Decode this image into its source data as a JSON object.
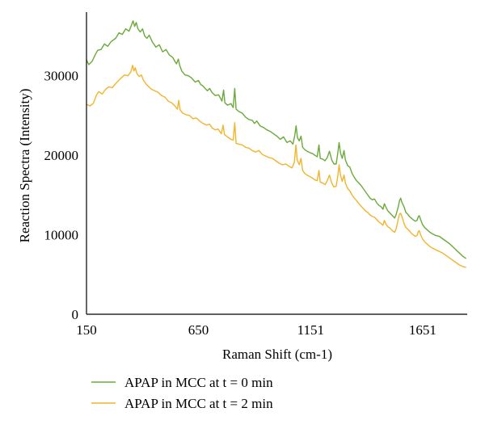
{
  "chart_data": {
    "type": "line",
    "title": "",
    "xlabel": "Raman Shift (cm-1)",
    "ylabel": "Reaction Spectra (Intensity)",
    "xlim": [
      150,
      1850
    ],
    "ylim": [
      0,
      38000
    ],
    "x_ticks": [
      150,
      650,
      1151,
      1651
    ],
    "y_ticks": [
      0,
      10000,
      20000,
      30000
    ],
    "grid": false,
    "legend_position": "bottom",
    "series": [
      {
        "name": "APAP in MCC at t = 0 min",
        "color": "#6aaa3a",
        "points": [
          [
            150,
            32000
          ],
          [
            160,
            31400
          ],
          [
            175,
            31800
          ],
          [
            190,
            32700
          ],
          [
            200,
            33200
          ],
          [
            215,
            33300
          ],
          [
            230,
            34000
          ],
          [
            245,
            33700
          ],
          [
            260,
            34300
          ],
          [
            280,
            34700
          ],
          [
            295,
            35400
          ],
          [
            310,
            35200
          ],
          [
            325,
            35900
          ],
          [
            340,
            35600
          ],
          [
            350,
            36300
          ],
          [
            358,
            36900
          ],
          [
            365,
            36200
          ],
          [
            372,
            36700
          ],
          [
            380,
            35900
          ],
          [
            390,
            35500
          ],
          [
            400,
            35900
          ],
          [
            410,
            35000
          ],
          [
            420,
            34700
          ],
          [
            430,
            35100
          ],
          [
            445,
            34200
          ],
          [
            460,
            33600
          ],
          [
            475,
            33900
          ],
          [
            490,
            33000
          ],
          [
            505,
            33300
          ],
          [
            520,
            32600
          ],
          [
            535,
            32300
          ],
          [
            545,
            31800
          ],
          [
            552,
            31500
          ],
          [
            560,
            32100
          ],
          [
            566,
            31300
          ],
          [
            575,
            30600
          ],
          [
            590,
            30100
          ],
          [
            605,
            30000
          ],
          [
            620,
            29700
          ],
          [
            635,
            29200
          ],
          [
            650,
            29400
          ],
          [
            660,
            28900
          ],
          [
            670,
            28700
          ],
          [
            680,
            28400
          ],
          [
            690,
            28100
          ],
          [
            700,
            28400
          ],
          [
            710,
            27900
          ],
          [
            725,
            27500
          ],
          [
            740,
            27600
          ],
          [
            755,
            26800
          ],
          [
            762,
            28200
          ],
          [
            768,
            26600
          ],
          [
            780,
            26300
          ],
          [
            795,
            26500
          ],
          [
            805,
            26000
          ],
          [
            812,
            28400
          ],
          [
            818,
            25800
          ],
          [
            830,
            25500
          ],
          [
            845,
            25300
          ],
          [
            860,
            24800
          ],
          [
            875,
            24500
          ],
          [
            890,
            24400
          ],
          [
            900,
            24000
          ],
          [
            910,
            24300
          ],
          [
            925,
            23700
          ],
          [
            940,
            23500
          ],
          [
            955,
            23200
          ],
          [
            970,
            23000
          ],
          [
            985,
            22700
          ],
          [
            1000,
            22400
          ],
          [
            1015,
            22000
          ],
          [
            1030,
            22300
          ],
          [
            1045,
            21600
          ],
          [
            1060,
            21800
          ],
          [
            1072,
            21400
          ],
          [
            1080,
            22500
          ],
          [
            1086,
            23700
          ],
          [
            1092,
            22200
          ],
          [
            1100,
            21800
          ],
          [
            1108,
            22400
          ],
          [
            1115,
            21000
          ],
          [
            1125,
            20700
          ],
          [
            1135,
            20500
          ],
          [
            1150,
            20300
          ],
          [
            1160,
            20200
          ],
          [
            1170,
            20000
          ],
          [
            1180,
            19800
          ],
          [
            1188,
            21300
          ],
          [
            1194,
            19600
          ],
          [
            1205,
            19500
          ],
          [
            1215,
            19300
          ],
          [
            1225,
            19700
          ],
          [
            1235,
            20500
          ],
          [
            1245,
            19400
          ],
          [
            1255,
            18900
          ],
          [
            1265,
            18900
          ],
          [
            1272,
            20300
          ],
          [
            1278,
            21600
          ],
          [
            1284,
            20300
          ],
          [
            1292,
            19600
          ],
          [
            1300,
            20600
          ],
          [
            1306,
            19400
          ],
          [
            1316,
            18700
          ],
          [
            1326,
            18500
          ],
          [
            1336,
            17700
          ],
          [
            1346,
            17200
          ],
          [
            1356,
            16800
          ],
          [
            1366,
            16500
          ],
          [
            1376,
            16200
          ],
          [
            1386,
            15800
          ],
          [
            1396,
            15400
          ],
          [
            1406,
            15000
          ],
          [
            1416,
            14600
          ],
          [
            1426,
            14400
          ],
          [
            1436,
            14500
          ],
          [
            1446,
            14000
          ],
          [
            1456,
            13700
          ],
          [
            1466,
            13500
          ],
          [
            1474,
            13200
          ],
          [
            1480,
            13900
          ],
          [
            1488,
            13400
          ],
          [
            1496,
            13000
          ],
          [
            1506,
            12700
          ],
          [
            1516,
            12400
          ],
          [
            1526,
            12100
          ],
          [
            1532,
            12500
          ],
          [
            1538,
            13100
          ],
          [
            1542,
            13500
          ],
          [
            1548,
            14300
          ],
          [
            1553,
            14600
          ],
          [
            1558,
            14100
          ],
          [
            1563,
            13800
          ],
          [
            1568,
            13500
          ],
          [
            1576,
            12800
          ],
          [
            1584,
            12600
          ],
          [
            1592,
            12300
          ],
          [
            1600,
            12100
          ],
          [
            1608,
            11900
          ],
          [
            1618,
            11700
          ],
          [
            1626,
            11800
          ],
          [
            1632,
            12300
          ],
          [
            1636,
            12400
          ],
          [
            1642,
            11900
          ],
          [
            1650,
            11300
          ],
          [
            1660,
            10900
          ],
          [
            1672,
            10600
          ],
          [
            1684,
            10300
          ],
          [
            1696,
            10100
          ],
          [
            1710,
            9900
          ],
          [
            1725,
            9800
          ],
          [
            1740,
            9500
          ],
          [
            1755,
            9200
          ],
          [
            1770,
            8900
          ],
          [
            1785,
            8500
          ],
          [
            1800,
            8100
          ],
          [
            1815,
            7700
          ],
          [
            1830,
            7300
          ],
          [
            1845,
            7000
          ]
        ]
      },
      {
        "name": "APAP in MCC at t = 2 min",
        "color": "#f2b42c",
        "points": [
          [
            150,
            26400
          ],
          [
            165,
            26200
          ],
          [
            180,
            26500
          ],
          [
            195,
            27600
          ],
          [
            205,
            28000
          ],
          [
            220,
            27700
          ],
          [
            235,
            28300
          ],
          [
            250,
            28600
          ],
          [
            265,
            28500
          ],
          [
            280,
            29000
          ],
          [
            300,
            29600
          ],
          [
            320,
            30100
          ],
          [
            335,
            30000
          ],
          [
            348,
            30500
          ],
          [
            356,
            31300
          ],
          [
            362,
            30600
          ],
          [
            368,
            31000
          ],
          [
            375,
            30300
          ],
          [
            385,
            29900
          ],
          [
            395,
            30100
          ],
          [
            405,
            29400
          ],
          [
            415,
            29000
          ],
          [
            425,
            28700
          ],
          [
            440,
            28300
          ],
          [
            455,
            28100
          ],
          [
            470,
            27900
          ],
          [
            485,
            27500
          ],
          [
            500,
            27300
          ],
          [
            515,
            26800
          ],
          [
            530,
            26600
          ],
          [
            545,
            26200
          ],
          [
            556,
            25800
          ],
          [
            562,
            26900
          ],
          [
            568,
            25700
          ],
          [
            580,
            25300
          ],
          [
            595,
            25100
          ],
          [
            610,
            25000
          ],
          [
            625,
            24600
          ],
          [
            640,
            24700
          ],
          [
            655,
            24300
          ],
          [
            670,
            24000
          ],
          [
            685,
            23800
          ],
          [
            700,
            23900
          ],
          [
            712,
            23400
          ],
          [
            725,
            23200
          ],
          [
            738,
            23300
          ],
          [
            752,
            22700
          ],
          [
            760,
            23800
          ],
          [
            766,
            22600
          ],
          [
            780,
            22300
          ],
          [
            795,
            22000
          ],
          [
            805,
            21900
          ],
          [
            812,
            24100
          ],
          [
            818,
            21500
          ],
          [
            830,
            21400
          ],
          [
            845,
            21300
          ],
          [
            860,
            21000
          ],
          [
            875,
            20900
          ],
          [
            890,
            20600
          ],
          [
            905,
            20400
          ],
          [
            920,
            20600
          ],
          [
            935,
            20100
          ],
          [
            950,
            19900
          ],
          [
            965,
            19700
          ],
          [
            980,
            19600
          ],
          [
            995,
            19300
          ],
          [
            1010,
            19000
          ],
          [
            1025,
            18800
          ],
          [
            1040,
            18900
          ],
          [
            1055,
            18600
          ],
          [
            1068,
            18400
          ],
          [
            1078,
            19100
          ],
          [
            1085,
            21300
          ],
          [
            1091,
            19400
          ],
          [
            1100,
            18800
          ],
          [
            1108,
            19600
          ],
          [
            1115,
            18100
          ],
          [
            1125,
            17700
          ],
          [
            1135,
            17500
          ],
          [
            1148,
            17300
          ],
          [
            1160,
            17100
          ],
          [
            1170,
            16900
          ],
          [
            1180,
            16800
          ],
          [
            1188,
            18100
          ],
          [
            1194,
            16600
          ],
          [
            1205,
            16500
          ],
          [
            1215,
            16300
          ],
          [
            1225,
            16800
          ],
          [
            1235,
            17500
          ],
          [
            1245,
            16500
          ],
          [
            1255,
            16000
          ],
          [
            1265,
            16100
          ],
          [
            1272,
            17400
          ],
          [
            1278,
            18800
          ],
          [
            1284,
            17500
          ],
          [
            1292,
            16700
          ],
          [
            1300,
            17500
          ],
          [
            1306,
            16500
          ],
          [
            1316,
            15800
          ],
          [
            1326,
            15500
          ],
          [
            1336,
            15000
          ],
          [
            1346,
            14600
          ],
          [
            1356,
            14300
          ],
          [
            1366,
            13900
          ],
          [
            1376,
            13600
          ],
          [
            1386,
            13300
          ],
          [
            1396,
            13000
          ],
          [
            1406,
            12800
          ],
          [
            1416,
            12500
          ],
          [
            1426,
            12300
          ],
          [
            1436,
            12200
          ],
          [
            1446,
            11900
          ],
          [
            1456,
            11600
          ],
          [
            1466,
            11400
          ],
          [
            1474,
            11200
          ],
          [
            1480,
            11800
          ],
          [
            1488,
            11300
          ],
          [
            1496,
            11000
          ],
          [
            1506,
            10800
          ],
          [
            1516,
            10500
          ],
          [
            1526,
            10300
          ],
          [
            1532,
            10700
          ],
          [
            1538,
            11400
          ],
          [
            1542,
            12000
          ],
          [
            1548,
            12600
          ],
          [
            1553,
            12700
          ],
          [
            1558,
            12300
          ],
          [
            1563,
            11900
          ],
          [
            1568,
            11400
          ],
          [
            1576,
            10900
          ],
          [
            1584,
            10700
          ],
          [
            1592,
            10500
          ],
          [
            1600,
            10200
          ],
          [
            1608,
            10000
          ],
          [
            1618,
            9800
          ],
          [
            1626,
            9900
          ],
          [
            1632,
            10400
          ],
          [
            1636,
            10500
          ],
          [
            1642,
            10000
          ],
          [
            1650,
            9500
          ],
          [
            1660,
            9100
          ],
          [
            1672,
            8800
          ],
          [
            1684,
            8500
          ],
          [
            1696,
            8300
          ],
          [
            1710,
            8100
          ],
          [
            1725,
            7900
          ],
          [
            1740,
            7700
          ],
          [
            1755,
            7400
          ],
          [
            1770,
            7100
          ],
          [
            1785,
            6800
          ],
          [
            1800,
            6500
          ],
          [
            1815,
            6200
          ],
          [
            1830,
            6000
          ],
          [
            1845,
            5900
          ]
        ]
      }
    ]
  }
}
